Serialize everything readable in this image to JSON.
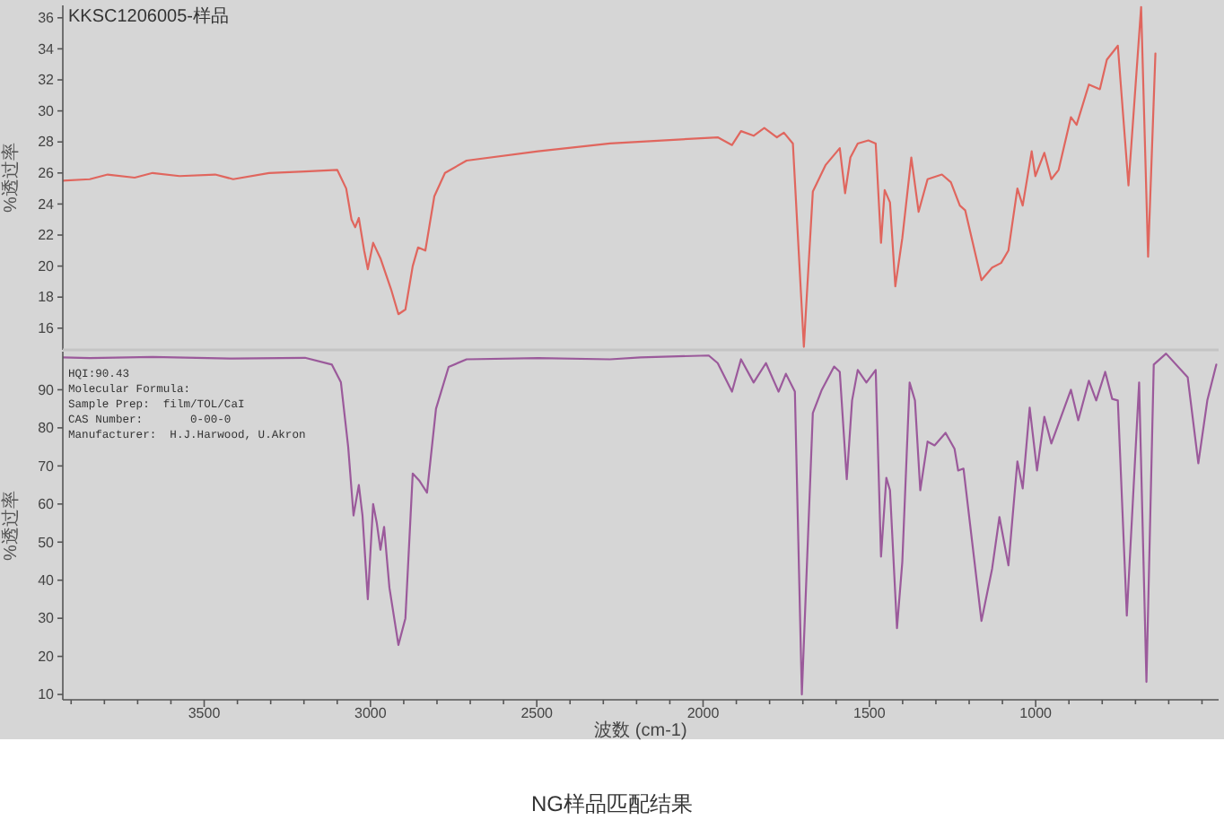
{
  "chart_data": [
    {
      "type": "line",
      "xlim": [
        3925,
        450
      ],
      "ylim": [
        14.6,
        36.8
      ],
      "yticks": [
        16,
        18,
        20,
        22,
        24,
        26,
        28,
        30,
        32,
        34,
        36
      ],
      "tick_labels": "y",
      "ylabel": "%透过率",
      "annotations": [
        "KKSC1206005-样品"
      ],
      "series": [
        {
          "color": "#e0665e",
          "x": [
            3925,
            3844,
            3790,
            3709,
            3655,
            3574,
            3467,
            3413,
            3305,
            3197,
            3100,
            3073,
            3057,
            3046,
            3035,
            3019,
            3008,
            2992,
            2970,
            2938,
            2916,
            2895,
            2873,
            2857,
            2835,
            2808,
            2776,
            2711,
            2496,
            2280,
            1956,
            1913,
            1886,
            1848,
            1816,
            1778,
            1757,
            1730,
            1697,
            1670,
            1632,
            1589,
            1573,
            1557,
            1535,
            1503,
            1481,
            1465,
            1454,
            1438,
            1422,
            1401,
            1374,
            1352,
            1325,
            1282,
            1255,
            1228,
            1212,
            1163,
            1131,
            1104,
            1082,
            1055,
            1039,
            1012,
            1001,
            974,
            953,
            931,
            894,
            877,
            840,
            807,
            786,
            753,
            721,
            683,
            662,
            640
          ],
          "values": [
            25.5,
            25.6,
            25.9,
            25.7,
            26.0,
            25.8,
            25.9,
            25.6,
            26.0,
            26.1,
            26.2,
            25.0,
            23.0,
            22.5,
            23.1,
            21.0,
            19.8,
            21.5,
            20.5,
            18.5,
            16.9,
            17.2,
            20.0,
            21.2,
            21.0,
            24.5,
            26.0,
            26.8,
            27.4,
            27.9,
            28.3,
            27.8,
            28.7,
            28.4,
            28.9,
            28.3,
            28.6,
            27.9,
            14.8,
            24.8,
            26.5,
            27.6,
            24.7,
            27.0,
            27.9,
            28.1,
            27.9,
            21.5,
            24.9,
            24.1,
            18.7,
            21.8,
            27.0,
            23.5,
            25.6,
            25.9,
            25.4,
            23.9,
            23.6,
            19.1,
            19.9,
            20.2,
            21.0,
            25.0,
            23.9,
            27.4,
            25.8,
            27.3,
            25.6,
            26.2,
            29.6,
            29.1,
            31.7,
            31.4,
            33.3,
            34.2,
            25.2,
            36.7,
            20.6,
            33.7
          ]
        }
      ]
    },
    {
      "type": "line",
      "xlim": [
        3925,
        450
      ],
      "ylim": [
        8.6,
        100
      ],
      "yticks": [
        10,
        20,
        30,
        40,
        50,
        60,
        70,
        80,
        90
      ],
      "xticks": [
        {
          "value": 3900,
          "label": null
        },
        {
          "value": 3800,
          "label": null
        },
        {
          "value": 3700,
          "label": null
        },
        {
          "value": 3600,
          "label": null
        },
        3500,
        {
          "value": 3400,
          "label": null
        },
        {
          "value": 3300,
          "label": null
        },
        {
          "value": 3200,
          "label": null
        },
        {
          "value": 3100,
          "label": null
        },
        3000,
        {
          "value": 2900,
          "label": null
        },
        {
          "value": 2800,
          "label": null
        },
        {
          "value": 2700,
          "label": null
        },
        {
          "value": 2600,
          "label": null
        },
        2500,
        {
          "value": 2400,
          "label": null
        },
        {
          "value": 2300,
          "label": null
        },
        {
          "value": 2200,
          "label": null
        },
        {
          "value": 2100,
          "label": null
        },
        2000,
        {
          "value": 1900,
          "label": null
        },
        {
          "value": 1800,
          "label": null
        },
        {
          "value": 1700,
          "label": null
        },
        {
          "value": 1600,
          "label": null
        },
        1500,
        {
          "value": 1400,
          "label": null
        },
        {
          "value": 1300,
          "label": null
        },
        {
          "value": 1200,
          "label": null
        },
        {
          "value": 1100,
          "label": null
        },
        1000,
        {
          "value": 900,
          "label": null
        },
        {
          "value": 800,
          "label": null
        },
        {
          "value": 700,
          "label": null
        },
        {
          "value": 600,
          "label": null
        },
        {
          "value": 500,
          "label": null
        }
      ],
      "xlabel": "波数 (cm-1)",
      "ylabel": "%透过率",
      "annotations": [
        "HQI:90.43",
        "Molecular Formula:",
        "Sample Prep:  film/TOL/CaI",
        "CAS Number:       0-00-0",
        "Manufacturer:  H.J.Harwood, U.Akron",
        "NG样品匹配结果"
      ],
      "series": [
        {
          "color": "#9b5a9b",
          "x": [
            3925,
            3844,
            3655,
            3413,
            3197,
            3116,
            3089,
            3067,
            3051,
            3035,
            3024,
            3008,
            2992,
            2981,
            2970,
            2959,
            2943,
            2916,
            2895,
            2873,
            2852,
            2830,
            2803,
            2765,
            2711,
            2496,
            2280,
            2188,
            1983,
            1956,
            1913,
            1886,
            1848,
            1811,
            1773,
            1751,
            1724,
            1703,
            1670,
            1643,
            1606,
            1589,
            1568,
            1552,
            1535,
            1509,
            1481,
            1465,
            1449,
            1438,
            1417,
            1401,
            1379,
            1363,
            1347,
            1325,
            1304,
            1271,
            1244,
            1233,
            1217,
            1163,
            1131,
            1109,
            1082,
            1055,
            1039,
            1018,
            996,
            974,
            953,
            894,
            872,
            840,
            818,
            791,
            770,
            753,
            726,
            689,
            667,
            645,
            608,
            543,
            511,
            484,
            457
          ],
          "values": [
            98.5,
            98.3,
            98.6,
            98.2,
            98.4,
            96.6,
            92,
            75,
            57,
            65,
            57,
            35,
            60,
            55,
            48,
            54,
            38,
            23,
            30,
            68,
            66,
            63,
            85,
            96,
            98,
            98.3,
            98.0,
            98.5,
            99,
            97,
            89.5,
            98,
            91.9,
            97,
            89.5,
            94.2,
            89.5,
            10,
            83.9,
            90,
            96.1,
            94.7,
            66.5,
            87.2,
            95.2,
            91.9,
            95.2,
            46.2,
            66.9,
            63.6,
            27.4,
            44.8,
            91.9,
            87.2,
            63.6,
            76.4,
            75.4,
            78.7,
            74.5,
            68.8,
            69.3,
            29.3,
            43,
            56.6,
            43.9,
            71.2,
            64.1,
            85.3,
            68.8,
            82.9,
            75.9,
            90,
            82,
            92.4,
            87.2,
            94.7,
            87.6,
            87.2,
            30.7,
            91.9,
            13.3,
            96.6,
            99.5,
            93.3,
            70.7,
            87.2,
            96.6
          ]
        }
      ]
    }
  ]
}
